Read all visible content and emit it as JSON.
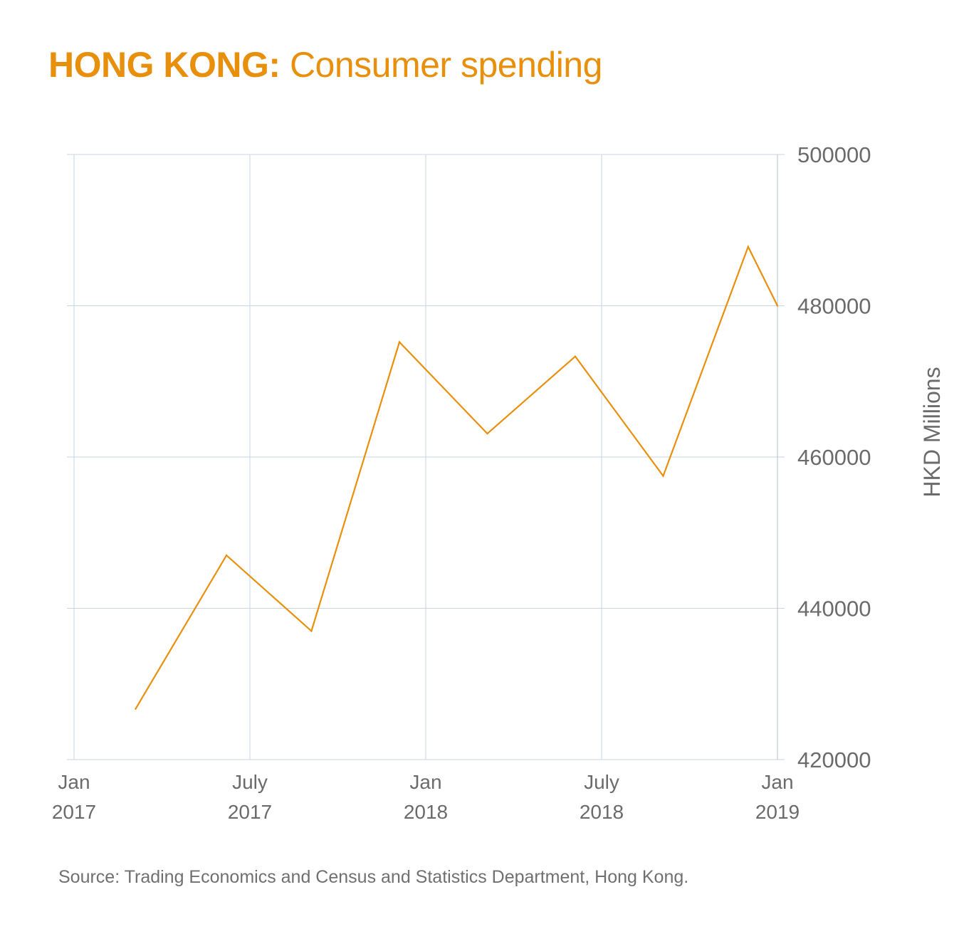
{
  "chart_data": {
    "type": "line",
    "title_lead": "HONG KONG:",
    "title_rest": " Consumer spending",
    "ylabel": "HKD Millions",
    "xlabel": "",
    "ylim": [
      420000,
      500000
    ],
    "yticks": [
      "420000",
      "440000",
      "460000",
      "480000",
      "500000"
    ],
    "xlim": [
      0,
      24
    ],
    "xticks": [
      {
        "month": 0,
        "line1": "Jan",
        "line2": "2017"
      },
      {
        "month": 6,
        "line1": "July",
        "line2": "2017"
      },
      {
        "month": 12,
        "line1": "Jan",
        "line2": "2018"
      },
      {
        "month": 18,
        "line1": "July",
        "line2": "2018"
      },
      {
        "month": 24,
        "line1": "Jan",
        "line2": "2019"
      }
    ],
    "grid": true,
    "series": [
      {
        "name": "Consumer spending",
        "color": "#E8900C",
        "x": [
          2.1,
          5.2,
          8.1,
          11.1,
          14.1,
          17.1,
          20.1,
          23.0,
          24.0
        ],
        "values": [
          426700,
          447000,
          437000,
          475200,
          463100,
          473300,
          457500,
          487800,
          480000
        ]
      }
    ],
    "source": "Source: Trading Economics and Census and Statistics Department, Hong Kong."
  },
  "colors": {
    "accent": "#E8900C",
    "grid": "#c9d6e3",
    "axis": "#b0c0d0"
  }
}
